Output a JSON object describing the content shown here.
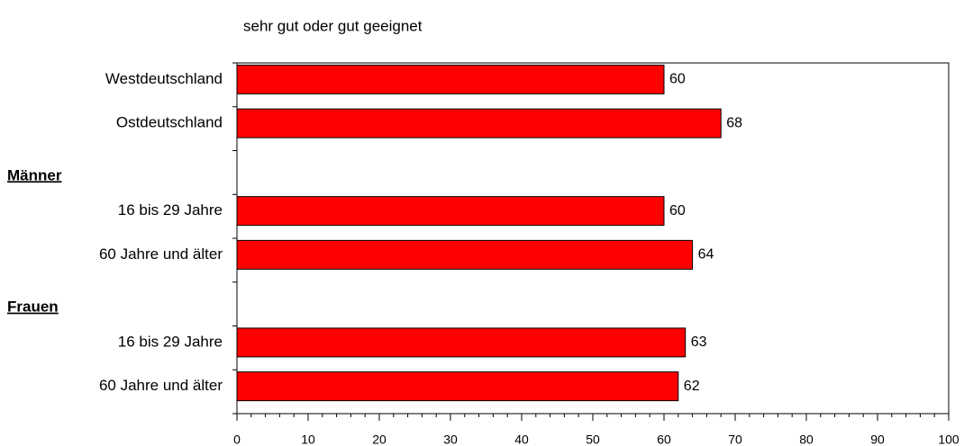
{
  "chart_data": {
    "type": "bar",
    "orientation": "horizontal",
    "title": "sehr gut oder gut geeignet",
    "categories": [
      "Westdeutschland",
      "Ostdeutschland",
      "Männer",
      "16 bis 29 Jahre",
      "60 Jahre und älter",
      "Frauen",
      "16 bis 29 Jahre",
      "60 Jahre und älter"
    ],
    "values": [
      60,
      68,
      null,
      60,
      64,
      null,
      63,
      62
    ],
    "color": "#ff0000",
    "xlim": [
      0,
      100
    ],
    "xticks": [
      0,
      10,
      20,
      30,
      40,
      50,
      60,
      70,
      80,
      90,
      100
    ],
    "grid": false
  }
}
